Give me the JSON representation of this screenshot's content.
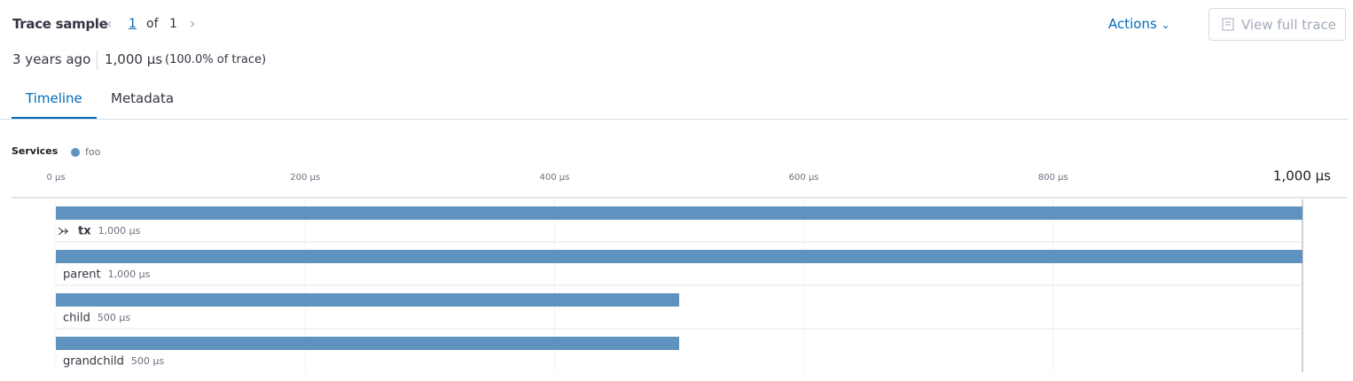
{
  "header": {
    "title": "Trace sample",
    "pager": {
      "current": "1",
      "of": "of",
      "total": "1"
    },
    "actions": "Actions",
    "view_full_trace": "View full trace"
  },
  "summary": {
    "age": "3 years ago",
    "duration": "1,000 μs",
    "percent": "(100.0% of trace)"
  },
  "tabs": [
    "Timeline",
    "Metadata"
  ],
  "timeline": {
    "legend_title": "Services",
    "services": [
      {
        "name": "foo",
        "color": "#6092c0"
      }
    ],
    "xlim": [
      0,
      1000
    ],
    "xticks": [
      {
        "value": 0,
        "label": "0 μs"
      },
      {
        "value": 200,
        "label": "200 μs"
      },
      {
        "value": 400,
        "label": "400 μs"
      },
      {
        "value": 600,
        "label": "600 μs"
      },
      {
        "value": 800,
        "label": "800 μs"
      },
      {
        "value": 1000,
        "label": "1,000 μs"
      }
    ],
    "spans": [
      {
        "name": "tx",
        "value": 1000,
        "value_label": "1,000 μs"
      },
      {
        "name": "parent",
        "value": 1000,
        "value_label": "1,000 μs"
      },
      {
        "name": "child",
        "value": 500,
        "value_label": "500 μs"
      },
      {
        "name": "grandchild",
        "value": 500,
        "value_label": "500 μs"
      }
    ]
  }
}
